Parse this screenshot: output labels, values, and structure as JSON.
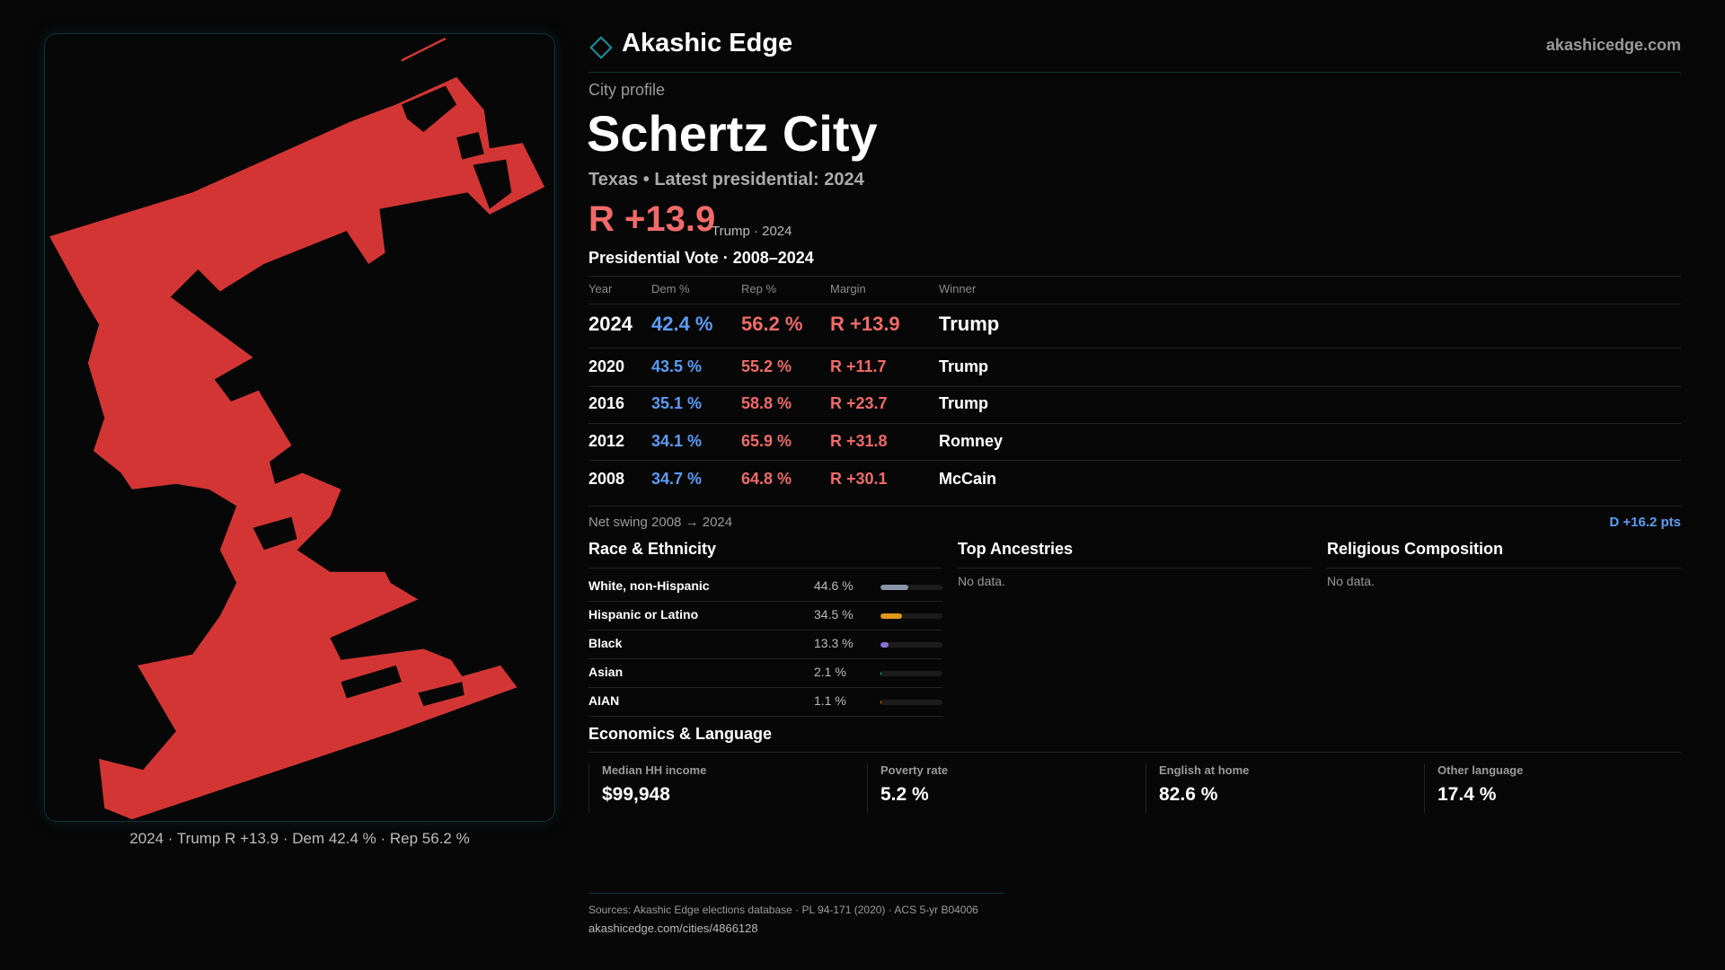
{
  "brand": {
    "name": "Akashic Edge",
    "site": "akashicedge.com",
    "icon": "diamond-icon",
    "accent": "#1f8f9a"
  },
  "profile": {
    "kicker": "City profile",
    "title": "Schertz City",
    "subtitle": "Texas • Latest presidential: 2024",
    "headline_margin": "R +13.9",
    "headline_note": "Trump · 2024"
  },
  "map": {
    "caption": "2024 · Trump R +13.9 · Dem 42.4 % · Rep 56.2 %",
    "fill": "#d33535"
  },
  "votes": {
    "title": "Presidential Vote · 2008–2024",
    "headers": [
      "Year",
      "Dem %",
      "Rep %",
      "Margin",
      "Winner"
    ],
    "rows": [
      [
        "2024",
        "42.4 %",
        "56.2 %",
        "R +13.9",
        "Trump"
      ],
      [
        "2020",
        "43.5 %",
        "55.2 %",
        "R +11.7",
        "Trump"
      ],
      [
        "2016",
        "35.1 %",
        "58.8 %",
        "R +23.7",
        "Trump"
      ],
      [
        "2012",
        "34.1 %",
        "65.9 %",
        "R +31.8",
        "Romney"
      ],
      [
        "2008",
        "34.7 %",
        "64.8 %",
        "R +30.1",
        "McCain"
      ]
    ],
    "swing_label": "Net swing 2008 → 2024",
    "swing_value": "D +16.2 pts"
  },
  "race": {
    "title": "Race & Ethnicity",
    "items": [
      {
        "label": "White, non-Hispanic",
        "value": "44.6 %",
        "pct": 44.6,
        "color": "#8a94a6"
      },
      {
        "label": "Hispanic or Latino",
        "value": "34.5 %",
        "pct": 34.5,
        "color": "#e0961c"
      },
      {
        "label": "Black",
        "value": "13.3 %",
        "pct": 13.3,
        "color": "#8b6fd6"
      },
      {
        "label": "Asian",
        "value": "2.1 %",
        "pct": 2.1,
        "color": "#2bb39a"
      },
      {
        "label": "AIAN",
        "value": "1.1 %",
        "pct": 1.1,
        "color": "#d9731a"
      }
    ]
  },
  "ancestries": {
    "title": "Top Ancestries",
    "empty": "No data."
  },
  "religion": {
    "title": "Religious Composition",
    "empty": "No data."
  },
  "econ": {
    "title": "Economics & Language",
    "cards": [
      {
        "label": "Median HH income",
        "value": "$99,948"
      },
      {
        "label": "Poverty rate",
        "value": "5.2 %"
      },
      {
        "label": "English at home",
        "value": "82.6 %"
      },
      {
        "label": "Other language",
        "value": "17.4 %"
      }
    ]
  },
  "footer": {
    "sources": "Sources: Akashic Edge elections database · PL 94-171 (2020) · ACS 5-yr B04006",
    "url": "akashicedge.com/cities/4866128"
  }
}
